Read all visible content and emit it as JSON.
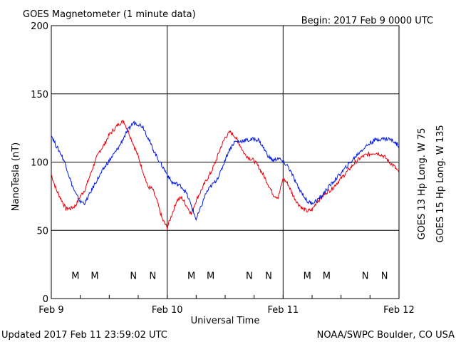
{
  "header": {
    "title": "GOES Magnetometer (1 minute data)",
    "begin": "Begin:  2017 Feb 9 0000 UTC"
  },
  "footer": {
    "updated": "Updated 2017 Feb 11 23:59:02 UTC",
    "credit": "NOAA/SWPC Boulder, CO USA"
  },
  "chart_data": {
    "type": "line",
    "xlabel": "Universal Time",
    "ylabel": "NanoTesla (nT)",
    "xlim": [
      0,
      72
    ],
    "ylim": [
      0,
      200
    ],
    "x_unit": "hours since 2017 Feb 9 0000 UTC",
    "x_ticks": [
      {
        "x": 0,
        "label": "Feb 9"
      },
      {
        "x": 24,
        "label": "Feb 10"
      },
      {
        "x": 48,
        "label": "Feb 11"
      },
      {
        "x": 72,
        "label": "Feb 12"
      }
    ],
    "y_ticks": [
      0,
      50,
      100,
      150,
      200
    ],
    "grid": true,
    "series": [
      {
        "name": "GOES 13 Hp",
        "legend": "GOES 13 Hp  Long. W 75",
        "color": "#e8000b",
        "x": [
          0,
          1,
          2,
          3,
          4,
          5,
          6,
          7,
          8,
          9,
          10,
          11,
          12,
          13,
          14,
          15,
          16,
          17,
          18,
          19,
          20,
          21,
          22,
          23,
          24,
          25,
          26,
          27,
          28,
          29,
          30,
          31,
          32,
          33,
          34,
          35,
          36,
          37,
          38,
          39,
          40,
          41,
          42,
          43,
          44,
          45,
          46,
          47,
          48,
          49,
          50,
          51,
          52,
          53,
          54,
          55,
          56,
          57,
          58,
          59,
          60,
          61,
          62,
          63,
          64,
          65,
          66,
          67,
          68,
          69,
          70,
          71,
          72
        ],
        "values": [
          91,
          80,
          73,
          66,
          66,
          68,
          75,
          80,
          90,
          100,
          108,
          113,
          120,
          124,
          128,
          130,
          122,
          113,
          104,
          93,
          82,
          80,
          70,
          58,
          52,
          62,
          72,
          74,
          68,
          62,
          72,
          79,
          86,
          92,
          100,
          110,
          118,
          122,
          119,
          113,
          106,
          103,
          101,
          96,
          90,
          83,
          76,
          74,
          88,
          84,
          76,
          70,
          66,
          64,
          65,
          71,
          74,
          78,
          80,
          84,
          88,
          92,
          96,
          100,
          103,
          105,
          106,
          107,
          106,
          104,
          100,
          97,
          92
        ]
      },
      {
        "name": "GOES 15 Hp",
        "legend": "GOES 15 Hp  Long. W 135",
        "color": "#0019e8",
        "x": [
          0,
          1,
          2,
          3,
          4,
          5,
          6,
          7,
          8,
          9,
          10,
          11,
          12,
          13,
          14,
          15,
          16,
          17,
          18,
          19,
          20,
          21,
          22,
          23,
          24,
          25,
          26,
          27,
          28,
          29,
          30,
          31,
          32,
          33,
          34,
          35,
          36,
          37,
          38,
          39,
          40,
          41,
          42,
          43,
          44,
          45,
          46,
          47,
          48,
          49,
          50,
          51,
          52,
          53,
          54,
          55,
          56,
          57,
          58,
          59,
          60,
          61,
          62,
          63,
          64,
          65,
          66,
          67,
          68,
          69,
          70,
          71,
          72
        ],
        "values": [
          120,
          112,
          106,
          98,
          86,
          77,
          71,
          70,
          77,
          84,
          90,
          96,
          101,
          106,
          111,
          118,
          124,
          129,
          128,
          126,
          118,
          110,
          103,
          97,
          91,
          85,
          84,
          82,
          77,
          68,
          58,
          67,
          77,
          82,
          86,
          92,
          102,
          110,
          115,
          115,
          116,
          116,
          117,
          116,
          110,
          104,
          101,
          103,
          100,
          97,
          90,
          82,
          77,
          71,
          70,
          72,
          75,
          80,
          84,
          88,
          92,
          96,
          100,
          104,
          108,
          111,
          114,
          116,
          117,
          117,
          117,
          115,
          112
        ]
      }
    ],
    "markers": [
      {
        "label": "M",
        "color": "#e8000b",
        "x": 5
      },
      {
        "label": "M",
        "color": "#0019e8",
        "x": 9
      },
      {
        "label": "N",
        "color": "#e8000b",
        "x": 17
      },
      {
        "label": "N",
        "color": "#0019e8",
        "x": 21
      },
      {
        "label": "M",
        "color": "#e8000b",
        "x": 29
      },
      {
        "label": "M",
        "color": "#0019e8",
        "x": 33
      },
      {
        "label": "N",
        "color": "#e8000b",
        "x": 41
      },
      {
        "label": "N",
        "color": "#0019e8",
        "x": 45
      },
      {
        "label": "M",
        "color": "#e8000b",
        "x": 53
      },
      {
        "label": "M",
        "color": "#0019e8",
        "x": 57
      },
      {
        "label": "N",
        "color": "#e8000b",
        "x": 65
      },
      {
        "label": "N",
        "color": "#0019e8",
        "x": 69
      }
    ],
    "marker_y": 17
  }
}
